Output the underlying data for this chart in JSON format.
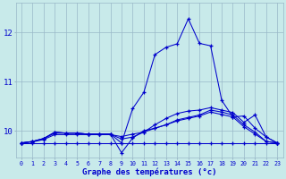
{
  "x_hours": [
    0,
    1,
    2,
    3,
    4,
    5,
    6,
    7,
    8,
    9,
    10,
    11,
    12,
    13,
    14,
    15,
    16,
    17,
    18,
    19,
    20,
    21,
    22,
    23
  ],
  "line1": [
    9.75,
    9.77,
    9.82,
    9.92,
    9.92,
    9.92,
    9.92,
    9.92,
    9.92,
    9.88,
    9.93,
    9.97,
    10.05,
    10.12,
    10.2,
    10.25,
    10.3,
    10.38,
    10.33,
    10.28,
    10.08,
    9.93,
    9.78,
    9.75
  ],
  "line2": [
    9.75,
    9.78,
    9.84,
    9.95,
    9.95,
    9.95,
    9.93,
    9.93,
    9.93,
    9.83,
    9.87,
    9.97,
    10.12,
    10.25,
    10.35,
    10.4,
    10.42,
    10.47,
    10.42,
    10.37,
    10.17,
    10.32,
    9.87,
    9.75
  ],
  "line3": [
    9.75,
    9.78,
    9.84,
    9.97,
    9.95,
    9.95,
    9.93,
    9.93,
    9.93,
    9.75,
    10.45,
    10.78,
    11.55,
    11.7,
    11.77,
    12.28,
    11.78,
    11.73,
    10.62,
    10.28,
    10.3,
    10.05,
    9.87,
    9.75
  ],
  "line4": [
    9.75,
    9.75,
    9.75,
    9.75,
    9.75,
    9.75,
    9.75,
    9.75,
    9.75,
    9.75,
    9.75,
    9.75,
    9.75,
    9.75,
    9.75,
    9.75,
    9.75,
    9.75,
    9.75,
    9.75,
    9.75,
    9.75,
    9.75,
    9.75
  ],
  "line5": [
    9.75,
    9.78,
    9.84,
    9.97,
    9.95,
    9.95,
    9.93,
    9.93,
    9.93,
    9.55,
    9.85,
    10.0,
    10.05,
    10.12,
    10.22,
    10.27,
    10.32,
    10.42,
    10.38,
    10.32,
    10.12,
    9.97,
    9.78,
    9.75
  ],
  "line_color": "#0000cc",
  "bg_color": "#c8eaea",
  "grid_color": "#9ab8c8",
  "xlabel": "Graphe des températures (°c)",
  "ylabel_ticks": [
    10,
    11,
    12
  ],
  "ylim": [
    9.45,
    12.6
  ],
  "xlim": [
    -0.5,
    23.5
  ],
  "tick_color": "#0000cc",
  "xlabel_color": "#0000cc"
}
